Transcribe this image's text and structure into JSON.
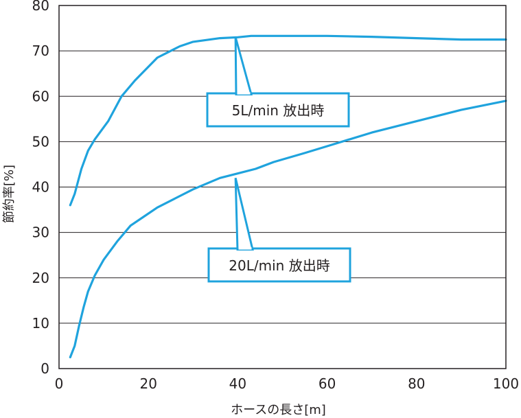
{
  "chart_data": {
    "type": "line",
    "xlabel": "ホースの長さ[m]",
    "ylabel": "節約率[%]",
    "xlim": [
      0,
      100
    ],
    "ylim": [
      0,
      80
    ],
    "xticks": [
      "0",
      "20",
      "40",
      "60",
      "80",
      "100"
    ],
    "yticks": [
      "0",
      "10",
      "20",
      "30",
      "40",
      "50",
      "60",
      "70",
      "80"
    ],
    "grid": "horizontal",
    "colors": {
      "series": "#1fa3dd",
      "axis": "#231f20"
    },
    "series": [
      {
        "name": "5L/min 放出時",
        "x": [
          2.5,
          3.5,
          5,
          6.5,
          8,
          11,
          14,
          17,
          20,
          22,
          24,
          27,
          30,
          36,
          40,
          43,
          50,
          60,
          70,
          80,
          90,
          100
        ],
        "y": [
          36,
          38.5,
          44,
          48,
          50.5,
          54.5,
          60,
          63.5,
          66.5,
          68.5,
          69.5,
          71,
          72,
          72.8,
          73,
          73.3,
          73.3,
          73.3,
          73.1,
          72.8,
          72.5,
          72.5
        ]
      },
      {
        "name": "20L/min 放出時",
        "x": [
          2.5,
          3.5,
          4.5,
          5.5,
          6.5,
          8,
          10,
          13,
          16,
          19,
          22,
          26,
          30,
          36,
          40,
          44,
          48,
          55,
          60,
          70,
          80,
          90,
          100
        ],
        "y": [
          2.5,
          5,
          9.5,
          13.5,
          17,
          20.5,
          24,
          28,
          31.5,
          33.5,
          35.5,
          37.5,
          39.5,
          42,
          43,
          44,
          45.5,
          47.5,
          49,
          52,
          54.5,
          57,
          59
        ]
      }
    ],
    "annotations": [
      {
        "text": "5L/min 放出時",
        "points_to": [
          39.5,
          73
        ]
      },
      {
        "text": "20L/min 放出時",
        "points_to": [
          39.5,
          42
        ]
      }
    ]
  }
}
